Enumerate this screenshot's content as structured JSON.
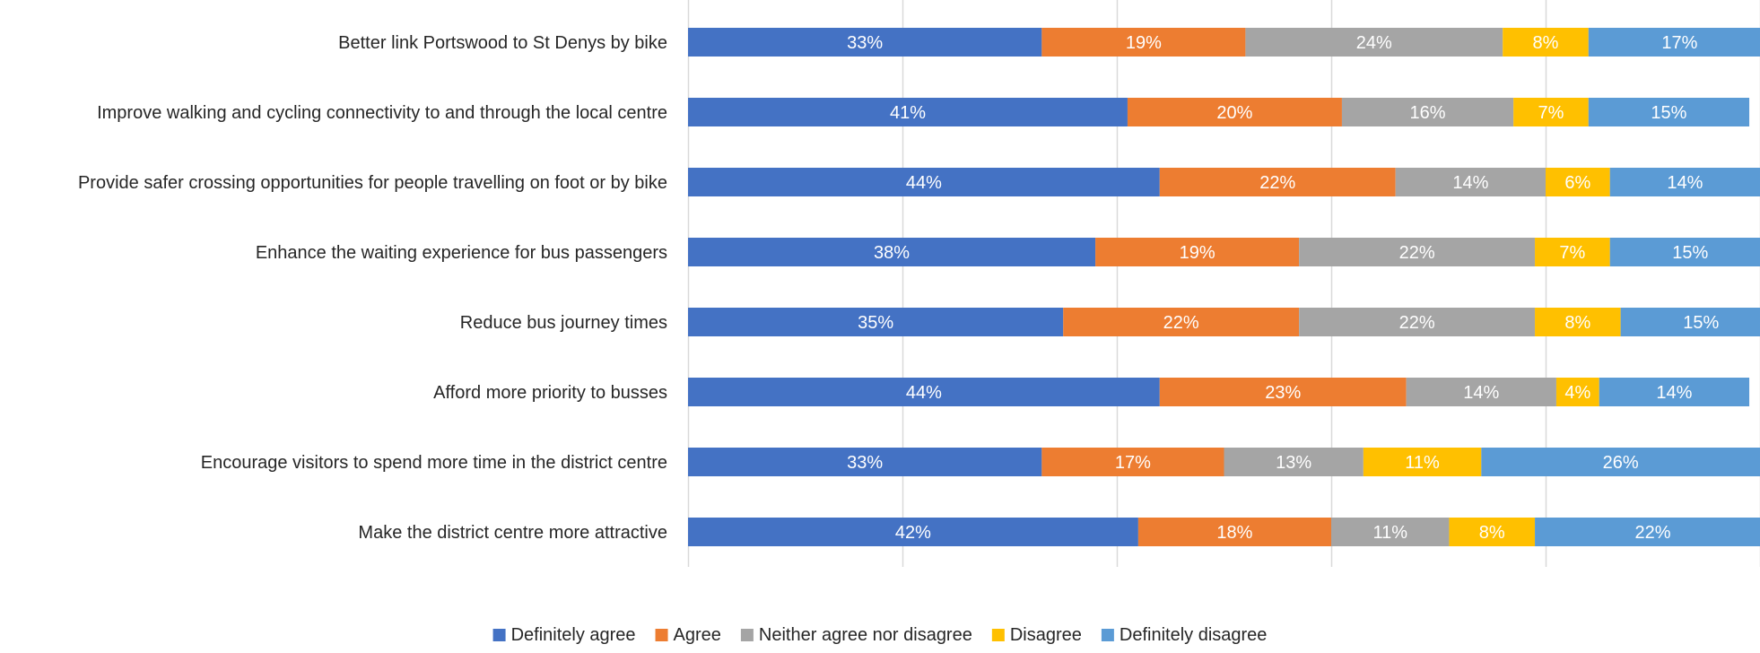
{
  "chart_data": {
    "type": "bar",
    "orientation": "horizontal",
    "stacked": true,
    "categories": [
      "Better link Portswood to St Denys by bike",
      "Improve walking and cycling connectivity to and through the local centre",
      "Provide safer crossing opportunities for people travelling on foot or by bike",
      "Enhance the waiting experience for bus passengers",
      "Reduce bus journey times",
      "Afford more priority to busses",
      "Encourage visitors to spend more time in the district centre",
      "Make the district centre more attractive"
    ],
    "series": [
      {
        "name": "Definitely agree",
        "color": "#4472C4",
        "label_color": "#FFFFFF",
        "values": [
          33,
          41,
          44,
          38,
          35,
          44,
          33,
          42
        ]
      },
      {
        "name": "Agree",
        "color": "#ED7D31",
        "label_color": "#FFFFFF",
        "values": [
          19,
          20,
          22,
          19,
          22,
          23,
          17,
          18
        ]
      },
      {
        "name": "Neither agree nor disagree",
        "color": "#A5A5A5",
        "label_color": "#FFFFFF",
        "values": [
          24,
          16,
          14,
          22,
          22,
          14,
          13,
          11
        ]
      },
      {
        "name": "Disagree",
        "color": "#FFC000",
        "label_color": "#FFFFFF",
        "values": [
          8,
          7,
          6,
          7,
          8,
          4,
          11,
          8
        ]
      },
      {
        "name": "Definitely disagree",
        "color": "#5B9BD5",
        "label_color": "#FFFFFF",
        "values": [
          17,
          15,
          14,
          15,
          15,
          14,
          26,
          22
        ]
      }
    ],
    "value_suffix": "%",
    "xlim": [
      0,
      100
    ],
    "grid": true,
    "legend_position": "bottom",
    "title": "",
    "xlabel": "",
    "ylabel": ""
  }
}
